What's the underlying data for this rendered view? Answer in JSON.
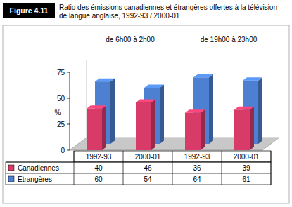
{
  "chart_data": {
    "type": "bar",
    "figure_label": "Figure 4.11",
    "title": "Ratio des émissions canadiennes et étrangères offertes à la télévision de langue anglaise, 1992-93 / 2000-01",
    "group_labels": [
      "de 6h00 à 2h00",
      "de 19h00 à 23h00"
    ],
    "y_label": "%",
    "categories": [
      "1992-93",
      "2000-01",
      "1992-93",
      "2000-01"
    ],
    "series": [
      {
        "name": "Canadiennes",
        "color": "#d93b69",
        "values": [
          40,
          46,
          36,
          39
        ]
      },
      {
        "name": "Étrangères",
        "color": "#4d80d0",
        "values": [
          60,
          54,
          64,
          61
        ]
      }
    ],
    "ylim": [
      0,
      75
    ],
    "yticks": [
      0,
      25,
      50,
      75
    ]
  }
}
